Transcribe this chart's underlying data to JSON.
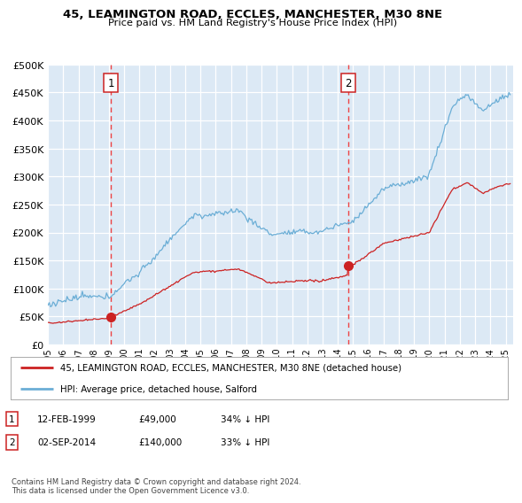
{
  "title1": "45, LEAMINGTON ROAD, ECCLES, MANCHESTER, M30 8NE",
  "title2": "Price paid vs. HM Land Registry's House Price Index (HPI)",
  "bg_color": "#dce9f5",
  "grid_color": "#ffffff",
  "hpi_color": "#6baed6",
  "price_color": "#cc2222",
  "vline_color": "#ee4444",
  "marker_color": "#cc2222",
  "legend_line1": "45, LEAMINGTON ROAD, ECCLES, MANCHESTER, M30 8NE (detached house)",
  "legend_line2": "HPI: Average price, detached house, Salford",
  "table_rows": [
    {
      "num": "1",
      "date": "12-FEB-1999",
      "price": "£49,000",
      "change": "34% ↓ HPI"
    },
    {
      "num": "2",
      "date": "02-SEP-2014",
      "price": "£140,000",
      "change": "33% ↓ HPI"
    }
  ],
  "footer": "Contains HM Land Registry data © Crown copyright and database right 2024.\nThis data is licensed under the Open Government Licence v3.0.",
  "ylim": [
    0,
    500000
  ],
  "yticks": [
    0,
    50000,
    100000,
    150000,
    200000,
    250000,
    300000,
    350000,
    400000,
    450000,
    500000
  ],
  "xlim_start": 1995.0,
  "xlim_end": 2025.5,
  "sale1_x": 1999.12,
  "sale1_y": 49000,
  "sale2_x": 2014.67,
  "sale2_y": 140000
}
